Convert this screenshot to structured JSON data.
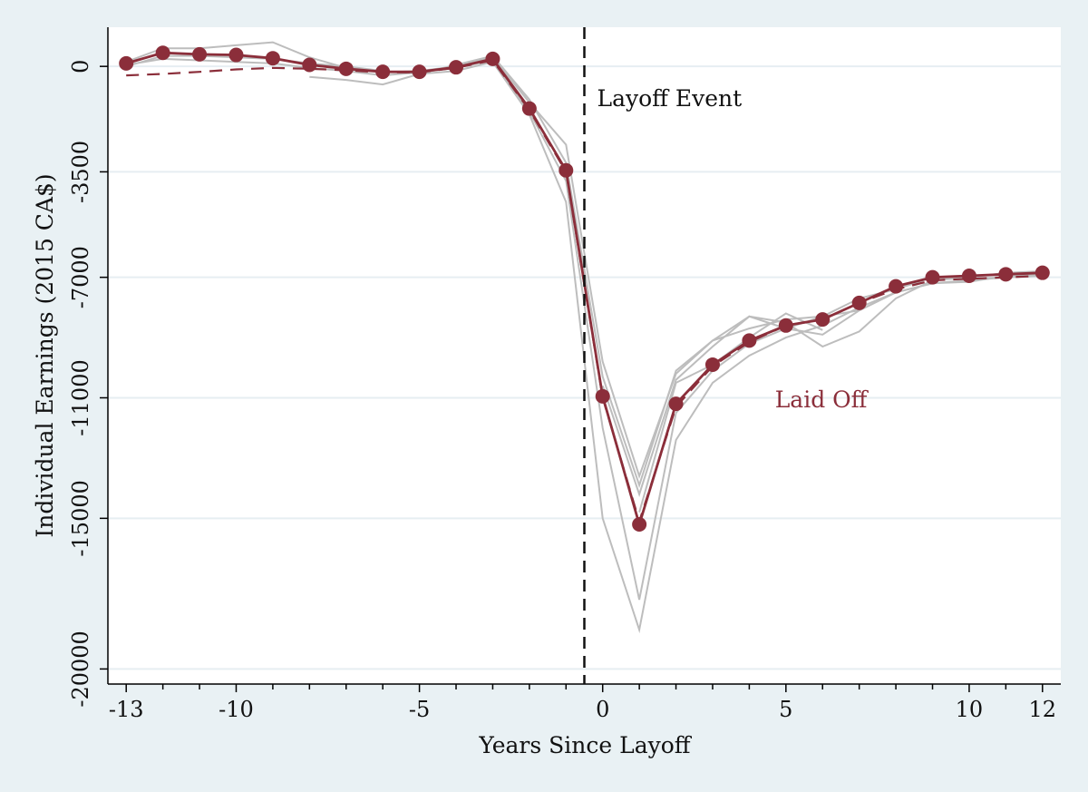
{
  "chart_data": {
    "type": "line",
    "title": "",
    "xlabel": "Years Since Layoff",
    "ylabel": "Individual Earnings (2015 CA$)",
    "xlim": [
      -13.5,
      12.5
    ],
    "ylim": [
      -20500,
      1300
    ],
    "x_ticks": [
      -13,
      -10,
      -5,
      0,
      5,
      10,
      12
    ],
    "y_ticks": [
      0,
      -3500,
      -7000,
      -11000,
      -15000,
      -20000
    ],
    "grid": "horizontal",
    "x": [
      -13,
      -12,
      -11,
      -10,
      -9,
      -8,
      -7,
      -6,
      -5,
      -4,
      -3,
      -2,
      -1,
      0,
      1,
      2,
      3,
      4,
      5,
      6,
      7,
      8,
      9,
      10,
      11,
      12
    ],
    "series": [
      {
        "name": "Laid Off",
        "style": "solid-markers",
        "color": "#8b2e3a",
        "values": [
          100,
          450,
          400,
          380,
          270,
          50,
          -80,
          -180,
          -180,
          -30,
          250,
          -1400,
          -3450,
          -10950,
          -15200,
          -11200,
          -9900,
          -9100,
          -8600,
          -8400,
          -7850,
          -7300,
          -7000,
          -6950,
          -6900,
          -6850
        ]
      },
      {
        "style": "dashed",
        "color": "#8b2e3a",
        "values": [
          -300,
          -250,
          -180,
          -100,
          -50,
          -80,
          -130,
          -200,
          -200,
          -50,
          200,
          -1450,
          -3500,
          -11000,
          -15100,
          -11300,
          -9950,
          -9150,
          -8600,
          -8400,
          -7850,
          -7400,
          -7100,
          -7050,
          -7000,
          -6950
        ]
      },
      {
        "style": "gray-spec",
        "color": "#bdbdbd",
        "x": [
          -13,
          -12,
          -11,
          -10,
          -9,
          -8,
          -7,
          -6,
          -5,
          -4,
          -3,
          -2,
          -1,
          0,
          1,
          2,
          3,
          4,
          5,
          6,
          7,
          8,
          9,
          10,
          11,
          12
        ],
        "values": [
          150,
          600,
          600,
          700,
          800,
          300,
          -50,
          -200,
          -150,
          0,
          300,
          -1200,
          -2600,
          -9800,
          -13600,
          -10200,
          -9100,
          -8300,
          -8500,
          -9300,
          -8800,
          -7700,
          -7100,
          -7000,
          -6850,
          -6800
        ]
      },
      {
        "style": "gray-spec",
        "color": "#bdbdbd",
        "x": [
          -13,
          -12,
          -11,
          -10,
          -9,
          -8,
          -7,
          -6,
          -5,
          -4,
          -3,
          -2,
          -1,
          0,
          1,
          2,
          3,
          4,
          5,
          6,
          7,
          8,
          9,
          10,
          11,
          12
        ],
        "values": [
          0,
          350,
          350,
          300,
          250,
          100,
          0,
          -150,
          -250,
          -150,
          150,
          -1600,
          -4500,
          -15000,
          -18700,
          -12400,
          -10500,
          -9600,
          -9000,
          -8600,
          -8000,
          -7500,
          -7200,
          -7100,
          -7000,
          -6900
        ]
      },
      {
        "style": "gray-spec",
        "color": "#bdbdbd",
        "x": [
          -13,
          -12,
          -11,
          -10,
          -9,
          -8,
          -7,
          -6,
          -5,
          -4,
          -3,
          -2,
          -1,
          0,
          1,
          2,
          3,
          4,
          5,
          6,
          7,
          8,
          9,
          10,
          11,
          12
        ],
        "values": [
          50,
          250,
          200,
          150,
          100,
          -50,
          -150,
          -300,
          -200,
          -50,
          200,
          -1500,
          -3800,
          -12000,
          -17700,
          -11500,
          -10100,
          -9200,
          -8700,
          -8300,
          -7700,
          -7400,
          -7000,
          -7050,
          -7000,
          -6950
        ]
      },
      {
        "style": "gray-spec",
        "color": "#bdbdbd",
        "x": [
          -8,
          -7,
          -6,
          -5,
          -4,
          -3,
          -2,
          -1,
          0,
          1,
          2,
          3,
          4,
          5,
          6,
          7
        ],
        "values": [
          -350,
          -450,
          -600,
          -250,
          50,
          350,
          -1100,
          -3200,
          -10300,
          -13900,
          -10100,
          -9100,
          -8700,
          -8400,
          -8300,
          -8100
        ]
      },
      {
        "style": "gray-spec",
        "color": "#bdbdbd",
        "x": [
          0,
          1,
          2,
          3,
          4,
          5,
          6,
          7,
          8,
          9,
          10,
          11,
          12
        ],
        "values": [
          -10600,
          -14200,
          -10400,
          -9300,
          -8300,
          -8700,
          -8900,
          -8100,
          -7500,
          -7200,
          -7150,
          -6950,
          -6900
        ]
      },
      {
        "style": "gray-spec",
        "color": "#bdbdbd",
        "x": [
          1,
          2,
          3,
          4,
          5,
          6
        ],
        "values": [
          -14800,
          -10500,
          -9900,
          -9000,
          -8200,
          -8750
        ]
      }
    ],
    "annotations": [
      {
        "text": "Layoff Event",
        "x": -0.5,
        "y": -1050,
        "color": "#111111"
      },
      {
        "text": "Laid Off",
        "x": 4.7,
        "y": -11050,
        "color": "#8b2e3a"
      }
    ],
    "vline": {
      "x": -0.5,
      "style": "dashed",
      "color": "#111111"
    }
  }
}
